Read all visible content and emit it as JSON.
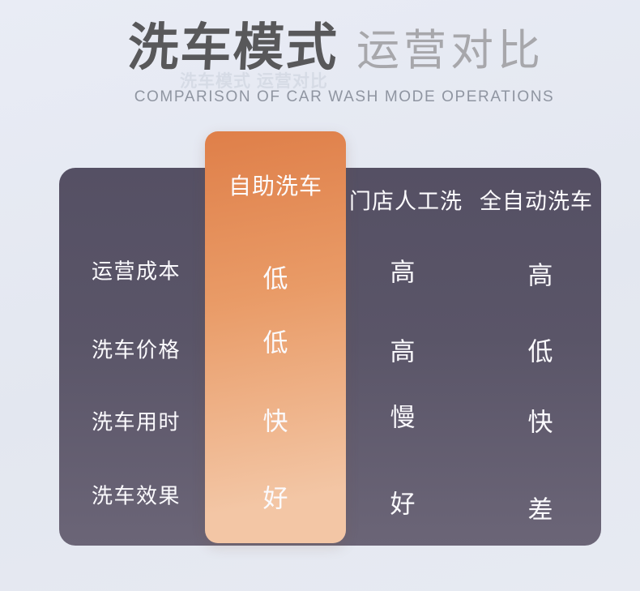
{
  "chart_data": {
    "type": "table",
    "title": "洗车模式 运营对比",
    "subtitle": "COMPARISON OF CAR WASH MODE OPERATIONS",
    "columns": [
      "",
      "自助洗车",
      "门店人工洗",
      "全自动洗车"
    ],
    "rows": [
      [
        "运营成本",
        "低",
        "高",
        "高"
      ],
      [
        "洗车价格",
        "低",
        "高",
        "低"
      ],
      [
        "洗车用时",
        "快",
        "慢",
        "快"
      ],
      [
        "洗车效果",
        "好",
        "好",
        "差"
      ]
    ],
    "highlighted_column": "自助洗车",
    "legend_position": "none",
    "grid": false
  },
  "header": {
    "title_primary": "洗车模式",
    "title_secondary": "运营对比",
    "title_reflection": "洗车模式 运营对比",
    "subtitle_en": "COMPARISON OF CAR WASH MODE OPERATIONS"
  },
  "colors": {
    "bg1": "#e9ecf5",
    "bg2": "#e3e7f0",
    "panel1": "#555064",
    "panel2": "#5a5568",
    "panel3": "#6b6577",
    "hl1": "#df7f49",
    "hl2": "#e99b67",
    "hl3": "#f3c6a5",
    "title1": "#58585a",
    "title2": "#a7a7ab",
    "ghost": "#ccd2de",
    "subtitle": "#8f95a1",
    "celltext": "#fbfafd"
  }
}
